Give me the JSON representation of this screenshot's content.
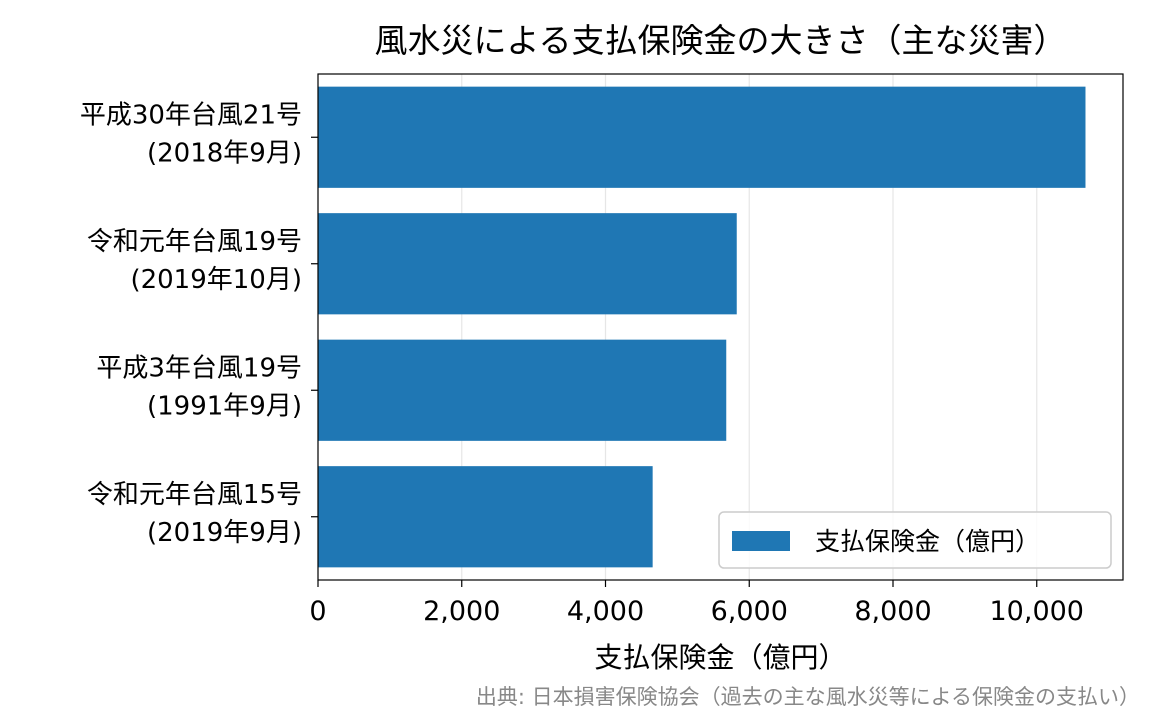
{
  "chart_data": {
    "type": "bar",
    "orientation": "horizontal",
    "title": "風水災による支払保険金の大きさ（主な災害）",
    "xlabel": "支払保険金（億円）",
    "ylabel": "",
    "categories": [
      [
        "平成30年台風21号",
        "(2018年9月)"
      ],
      [
        "令和元年台風19号",
        "(2019年10月)"
      ],
      [
        "平成3年台風19号",
        "(1991年9月)"
      ],
      [
        "令和元年台風15号",
        "(2019年9月)"
      ]
    ],
    "series": [
      {
        "name": "支払保険金（億円）",
        "color": "#1f77b4",
        "values": [
          10678,
          5826,
          5680,
          4656
        ]
      }
    ],
    "xlim": [
      0,
      11200
    ],
    "xticks": [
      0,
      2000,
      4000,
      6000,
      8000,
      10000
    ],
    "xtick_labels": [
      "0",
      "2,000",
      "4,000",
      "6,000",
      "8,000",
      "10,000"
    ],
    "grid": "x",
    "legend_position": "lower-right",
    "source_note": "出典: 日本損害保険協会（過去の主な風水災等による保険金の支払い）"
  }
}
